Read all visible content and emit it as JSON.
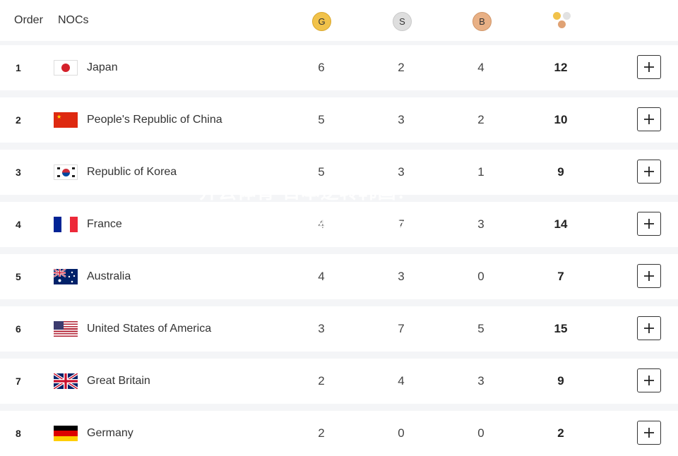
{
  "header": {
    "order_label": "Order",
    "noc_label": "NOCs",
    "gold_badge": "G",
    "silver_badge": "S",
    "bronze_badge": "B",
    "total_icon": "medals-total-icon"
  },
  "colors": {
    "gold": "#f1c24a",
    "silver": "#dedede",
    "bronze": "#e8b085",
    "row_bg": "#ffffff",
    "page_bg": "#f4f5f7"
  },
  "rows": [
    {
      "order": "1",
      "noc": "Japan",
      "flag": "japan-flag-icon",
      "gold": "6",
      "silver": "2",
      "bronze": "4",
      "total": "12"
    },
    {
      "order": "2",
      "noc": "People's Republic of China",
      "flag": "china-flag-icon",
      "gold": "5",
      "silver": "3",
      "bronze": "2",
      "total": "10"
    },
    {
      "order": "3",
      "noc": "Republic of Korea",
      "flag": "korea-flag-icon",
      "gold": "5",
      "silver": "3",
      "bronze": "1",
      "total": "9"
    },
    {
      "order": "4",
      "noc": "France",
      "flag": "france-flag-icon",
      "gold": "4",
      "silver": "7",
      "bronze": "3",
      "total": "14"
    },
    {
      "order": "5",
      "noc": "Australia",
      "flag": "australia-flag-icon",
      "gold": "4",
      "silver": "3",
      "bronze": "0",
      "total": "7"
    },
    {
      "order": "6",
      "noc": "United States of America",
      "flag": "usa-flag-icon",
      "gold": "3",
      "silver": "7",
      "bronze": "5",
      "total": "15"
    },
    {
      "order": "7",
      "noc": "Great Britain",
      "flag": "great-britain-flag-icon",
      "gold": "2",
      "silver": "4",
      "bronze": "3",
      "total": "9"
    },
    {
      "order": "8",
      "noc": "Germany",
      "flag": "germany-flag-icon",
      "gold": "2",
      "silver": "0",
      "bronze": "0",
      "total": "2"
    }
  ],
  "expand_icon": "plus-icon",
  "watermark": {
    "line1": "开云体育-日本逆转韩国？",
    "line2": "人民日报：中国第一优势明显"
  }
}
